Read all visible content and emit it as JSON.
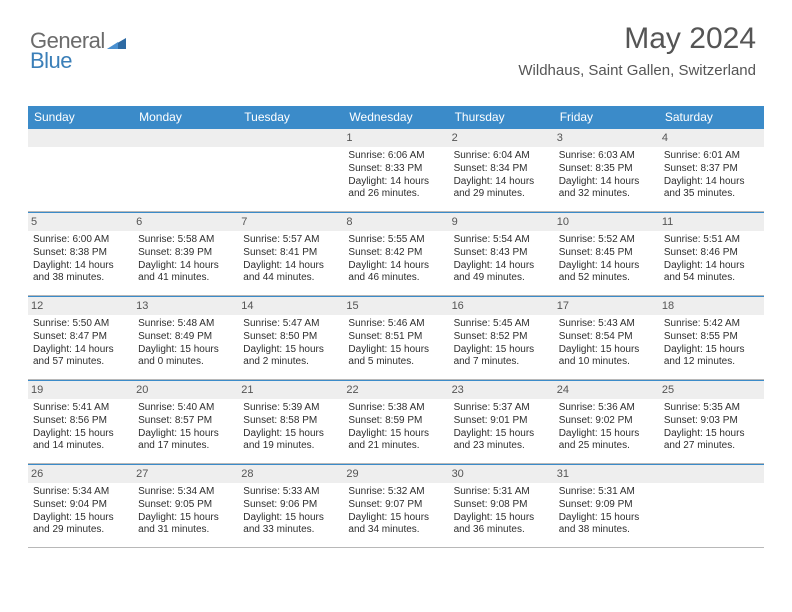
{
  "logo": {
    "part1": "General",
    "part2": "Blue"
  },
  "header": {
    "title": "May 2024",
    "location": "Wildhaus, Saint Gallen, Switzerland"
  },
  "columns": [
    "Sunday",
    "Monday",
    "Tuesday",
    "Wednesday",
    "Thursday",
    "Friday",
    "Saturday"
  ],
  "colors": {
    "header_bar": "#3b8bc9",
    "day_header": "#eeeeee",
    "text": "#2e2e2e",
    "title": "#555555",
    "rule": "#b8b8b8"
  },
  "typography": {
    "title_fontsize": 30,
    "location_fontsize": 15,
    "col_header_fontsize": 12,
    "daynum_fontsize": 11,
    "body_fontsize": 10
  },
  "weeks": [
    [
      {
        "num": "",
        "sunrise": "",
        "sunset": "",
        "daylight": ""
      },
      {
        "num": "",
        "sunrise": "",
        "sunset": "",
        "daylight": ""
      },
      {
        "num": "",
        "sunrise": "",
        "sunset": "",
        "daylight": ""
      },
      {
        "num": "1",
        "sunrise": "Sunrise: 6:06 AM",
        "sunset": "Sunset: 8:33 PM",
        "daylight": "Daylight: 14 hours and 26 minutes."
      },
      {
        "num": "2",
        "sunrise": "Sunrise: 6:04 AM",
        "sunset": "Sunset: 8:34 PM",
        "daylight": "Daylight: 14 hours and 29 minutes."
      },
      {
        "num": "3",
        "sunrise": "Sunrise: 6:03 AM",
        "sunset": "Sunset: 8:35 PM",
        "daylight": "Daylight: 14 hours and 32 minutes."
      },
      {
        "num": "4",
        "sunrise": "Sunrise: 6:01 AM",
        "sunset": "Sunset: 8:37 PM",
        "daylight": "Daylight: 14 hours and 35 minutes."
      }
    ],
    [
      {
        "num": "5",
        "sunrise": "Sunrise: 6:00 AM",
        "sunset": "Sunset: 8:38 PM",
        "daylight": "Daylight: 14 hours and 38 minutes."
      },
      {
        "num": "6",
        "sunrise": "Sunrise: 5:58 AM",
        "sunset": "Sunset: 8:39 PM",
        "daylight": "Daylight: 14 hours and 41 minutes."
      },
      {
        "num": "7",
        "sunrise": "Sunrise: 5:57 AM",
        "sunset": "Sunset: 8:41 PM",
        "daylight": "Daylight: 14 hours and 44 minutes."
      },
      {
        "num": "8",
        "sunrise": "Sunrise: 5:55 AM",
        "sunset": "Sunset: 8:42 PM",
        "daylight": "Daylight: 14 hours and 46 minutes."
      },
      {
        "num": "9",
        "sunrise": "Sunrise: 5:54 AM",
        "sunset": "Sunset: 8:43 PM",
        "daylight": "Daylight: 14 hours and 49 minutes."
      },
      {
        "num": "10",
        "sunrise": "Sunrise: 5:52 AM",
        "sunset": "Sunset: 8:45 PM",
        "daylight": "Daylight: 14 hours and 52 minutes."
      },
      {
        "num": "11",
        "sunrise": "Sunrise: 5:51 AM",
        "sunset": "Sunset: 8:46 PM",
        "daylight": "Daylight: 14 hours and 54 minutes."
      }
    ],
    [
      {
        "num": "12",
        "sunrise": "Sunrise: 5:50 AM",
        "sunset": "Sunset: 8:47 PM",
        "daylight": "Daylight: 14 hours and 57 minutes."
      },
      {
        "num": "13",
        "sunrise": "Sunrise: 5:48 AM",
        "sunset": "Sunset: 8:49 PM",
        "daylight": "Daylight: 15 hours and 0 minutes."
      },
      {
        "num": "14",
        "sunrise": "Sunrise: 5:47 AM",
        "sunset": "Sunset: 8:50 PM",
        "daylight": "Daylight: 15 hours and 2 minutes."
      },
      {
        "num": "15",
        "sunrise": "Sunrise: 5:46 AM",
        "sunset": "Sunset: 8:51 PM",
        "daylight": "Daylight: 15 hours and 5 minutes."
      },
      {
        "num": "16",
        "sunrise": "Sunrise: 5:45 AM",
        "sunset": "Sunset: 8:52 PM",
        "daylight": "Daylight: 15 hours and 7 minutes."
      },
      {
        "num": "17",
        "sunrise": "Sunrise: 5:43 AM",
        "sunset": "Sunset: 8:54 PM",
        "daylight": "Daylight: 15 hours and 10 minutes."
      },
      {
        "num": "18",
        "sunrise": "Sunrise: 5:42 AM",
        "sunset": "Sunset: 8:55 PM",
        "daylight": "Daylight: 15 hours and 12 minutes."
      }
    ],
    [
      {
        "num": "19",
        "sunrise": "Sunrise: 5:41 AM",
        "sunset": "Sunset: 8:56 PM",
        "daylight": "Daylight: 15 hours and 14 minutes."
      },
      {
        "num": "20",
        "sunrise": "Sunrise: 5:40 AM",
        "sunset": "Sunset: 8:57 PM",
        "daylight": "Daylight: 15 hours and 17 minutes."
      },
      {
        "num": "21",
        "sunrise": "Sunrise: 5:39 AM",
        "sunset": "Sunset: 8:58 PM",
        "daylight": "Daylight: 15 hours and 19 minutes."
      },
      {
        "num": "22",
        "sunrise": "Sunrise: 5:38 AM",
        "sunset": "Sunset: 8:59 PM",
        "daylight": "Daylight: 15 hours and 21 minutes."
      },
      {
        "num": "23",
        "sunrise": "Sunrise: 5:37 AM",
        "sunset": "Sunset: 9:01 PM",
        "daylight": "Daylight: 15 hours and 23 minutes."
      },
      {
        "num": "24",
        "sunrise": "Sunrise: 5:36 AM",
        "sunset": "Sunset: 9:02 PM",
        "daylight": "Daylight: 15 hours and 25 minutes."
      },
      {
        "num": "25",
        "sunrise": "Sunrise: 5:35 AM",
        "sunset": "Sunset: 9:03 PM",
        "daylight": "Daylight: 15 hours and 27 minutes."
      }
    ],
    [
      {
        "num": "26",
        "sunrise": "Sunrise: 5:34 AM",
        "sunset": "Sunset: 9:04 PM",
        "daylight": "Daylight: 15 hours and 29 minutes."
      },
      {
        "num": "27",
        "sunrise": "Sunrise: 5:34 AM",
        "sunset": "Sunset: 9:05 PM",
        "daylight": "Daylight: 15 hours and 31 minutes."
      },
      {
        "num": "28",
        "sunrise": "Sunrise: 5:33 AM",
        "sunset": "Sunset: 9:06 PM",
        "daylight": "Daylight: 15 hours and 33 minutes."
      },
      {
        "num": "29",
        "sunrise": "Sunrise: 5:32 AM",
        "sunset": "Sunset: 9:07 PM",
        "daylight": "Daylight: 15 hours and 34 minutes."
      },
      {
        "num": "30",
        "sunrise": "Sunrise: 5:31 AM",
        "sunset": "Sunset: 9:08 PM",
        "daylight": "Daylight: 15 hours and 36 minutes."
      },
      {
        "num": "31",
        "sunrise": "Sunrise: 5:31 AM",
        "sunset": "Sunset: 9:09 PM",
        "daylight": "Daylight: 15 hours and 38 minutes."
      },
      {
        "num": "",
        "sunrise": "",
        "sunset": "",
        "daylight": ""
      }
    ]
  ]
}
